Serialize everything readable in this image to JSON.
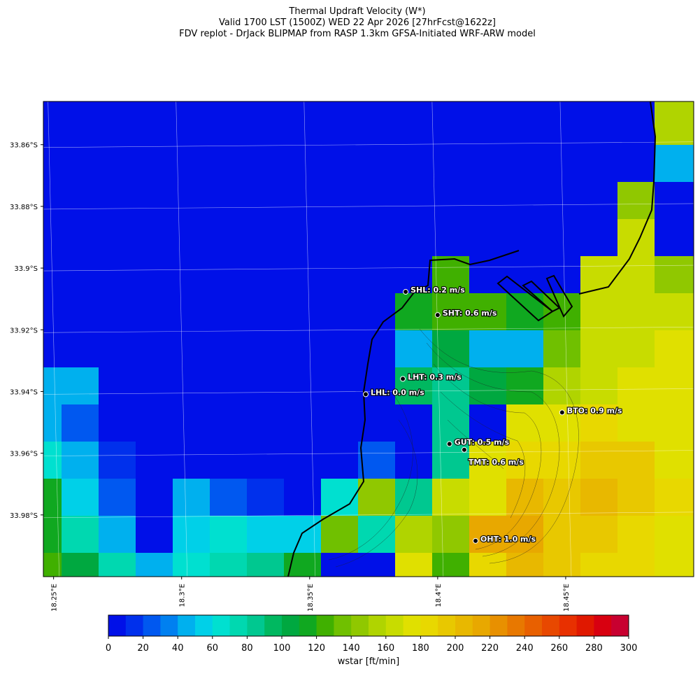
{
  "header": {
    "title_lines": [
      "Thermal Updraft Velocity (W*)",
      "Valid 1700 LST (1500Z) WED 22 Apr 2026 [27hrFcst@1622z]",
      "FDV replot - DrJack BLIPMAP from RASP 1.3km GFSA-Initiated WRF-ARW model"
    ]
  },
  "map": {
    "xlim": [
      18.246,
      18.5
    ],
    "ylim": [
      -34.0,
      -33.846
    ],
    "xticks": [
      {
        "value": 18.25,
        "label": "18.25°E"
      },
      {
        "value": 18.3,
        "label": "18.3°E"
      },
      {
        "value": 18.35,
        "label": "18.35°E"
      },
      {
        "value": 18.4,
        "label": "18.4°E"
      },
      {
        "value": 18.45,
        "label": "18.45°E"
      }
    ],
    "yticks": [
      {
        "value": -33.86,
        "label": "33.86°S"
      },
      {
        "value": -33.88,
        "label": "33.88°S"
      },
      {
        "value": -33.9,
        "label": "33.9°S"
      },
      {
        "value": -33.92,
        "label": "33.92°S"
      },
      {
        "value": -33.94,
        "label": "33.94°S"
      },
      {
        "value": -33.96,
        "label": "33.96°S"
      },
      {
        "value": -33.98,
        "label": "33.98°S"
      }
    ],
    "grid": true,
    "wstar_grid": [
      [
        0,
        0,
        0,
        0,
        0,
        0,
        0,
        0,
        0,
        0,
        0,
        0,
        0,
        0,
        0,
        0,
        0,
        150,
        150
      ],
      [
        0,
        0,
        0,
        0,
        0,
        0,
        0,
        0,
        0,
        0,
        0,
        0,
        0,
        0,
        0,
        0,
        0,
        150,
        150
      ],
      [
        0,
        0,
        0,
        0,
        0,
        0,
        0,
        0,
        0,
        0,
        0,
        0,
        0,
        0,
        0,
        0,
        0,
        40,
        40
      ],
      [
        0,
        0,
        0,
        0,
        0,
        0,
        0,
        0,
        0,
        0,
        0,
        0,
        0,
        0,
        0,
        0,
        140,
        0,
        0
      ],
      [
        0,
        0,
        0,
        0,
        0,
        0,
        0,
        0,
        0,
        0,
        0,
        0,
        0,
        0,
        0,
        0,
        160,
        0,
        0
      ],
      [
        0,
        0,
        0,
        0,
        0,
        0,
        0,
        0,
        0,
        0,
        0,
        120,
        0,
        0,
        0,
        160,
        160,
        140,
        140
      ],
      [
        0,
        0,
        0,
        0,
        0,
        0,
        0,
        0,
        0,
        0,
        110,
        120,
        120,
        115,
        120,
        160,
        165,
        165,
        165
      ],
      [
        0,
        0,
        0,
        0,
        0,
        0,
        0,
        0,
        0,
        0,
        40,
        100,
        40,
        40,
        130,
        160,
        165,
        175,
        175
      ],
      [
        40,
        40,
        0,
        0,
        0,
        0,
        0,
        0,
        0,
        0,
        90,
        80,
        100,
        110,
        155,
        165,
        170,
        175,
        175
      ],
      [
        40,
        20,
        0,
        0,
        0,
        0,
        0,
        0,
        0,
        0,
        0,
        80,
        0,
        175,
        175,
        180,
        175,
        175,
        175
      ],
      [
        60,
        40,
        10,
        0,
        0,
        0,
        0,
        0,
        0,
        20,
        0,
        80,
        170,
        185,
        185,
        195,
        190,
        175,
        175
      ],
      [
        110,
        50,
        20,
        0,
        40,
        20,
        10,
        0,
        60,
        140,
        80,
        160,
        175,
        200,
        195,
        200,
        190,
        180,
        180
      ],
      [
        110,
        70,
        40,
        0,
        50,
        60,
        50,
        50,
        130,
        70,
        150,
        140,
        210,
        210,
        195,
        190,
        180,
        170,
        170
      ],
      [
        120,
        100,
        70,
        40,
        60,
        70,
        80,
        110,
        0,
        0,
        170,
        120,
        180,
        205,
        195,
        185,
        180,
        170,
        170
      ]
    ],
    "stations": [
      {
        "lon": 18.3875,
        "lat": -33.9077,
        "label": "SHL: 0.2 m/s"
      },
      {
        "lon": 18.4,
        "lat": -33.9152,
        "label": "SHT: 0.6 m/s"
      },
      {
        "lon": 18.3864,
        "lat": -33.9359,
        "label": "LHT: 0.3 m/s"
      },
      {
        "lon": 18.3719,
        "lat": -33.9409,
        "label": "LHL: 0.0 m/s"
      },
      {
        "lon": 18.4486,
        "lat": -33.9468,
        "label": "BTO: 0.9 m/s"
      },
      {
        "lon": 18.4046,
        "lat": -33.957,
        "label": "GUT: 0.5 m/s"
      },
      {
        "lon": 18.4104,
        "lat": -33.9589,
        "label": "TMT: 0.6 m/s"
      },
      {
        "lon": 18.4148,
        "lat": -33.9884,
        "label": "OHT: 1.0 m/s"
      }
    ]
  },
  "colorbar": {
    "clim": [
      0,
      300
    ],
    "ticks": [
      0,
      20,
      40,
      60,
      80,
      100,
      120,
      140,
      160,
      180,
      200,
      220,
      240,
      260,
      280,
      300
    ],
    "label": "wstar [ft/min]",
    "colors": [
      "#0010e8",
      "#0030ec",
      "#0058f0",
      "#0080f0",
      "#00b0ee",
      "#00d0e8",
      "#00e0d0",
      "#00d8b0",
      "#00c890",
      "#00b860",
      "#00a840",
      "#10a820",
      "#40b000",
      "#70c000",
      "#90c800",
      "#b0d400",
      "#c8dc00",
      "#e0e000",
      "#e8d800",
      "#e8c800",
      "#e8b800",
      "#e8a800",
      "#e89000",
      "#e87800",
      "#e86000",
      "#e84800",
      "#e83000",
      "#e01800",
      "#d80010",
      "#c80030"
    ]
  }
}
